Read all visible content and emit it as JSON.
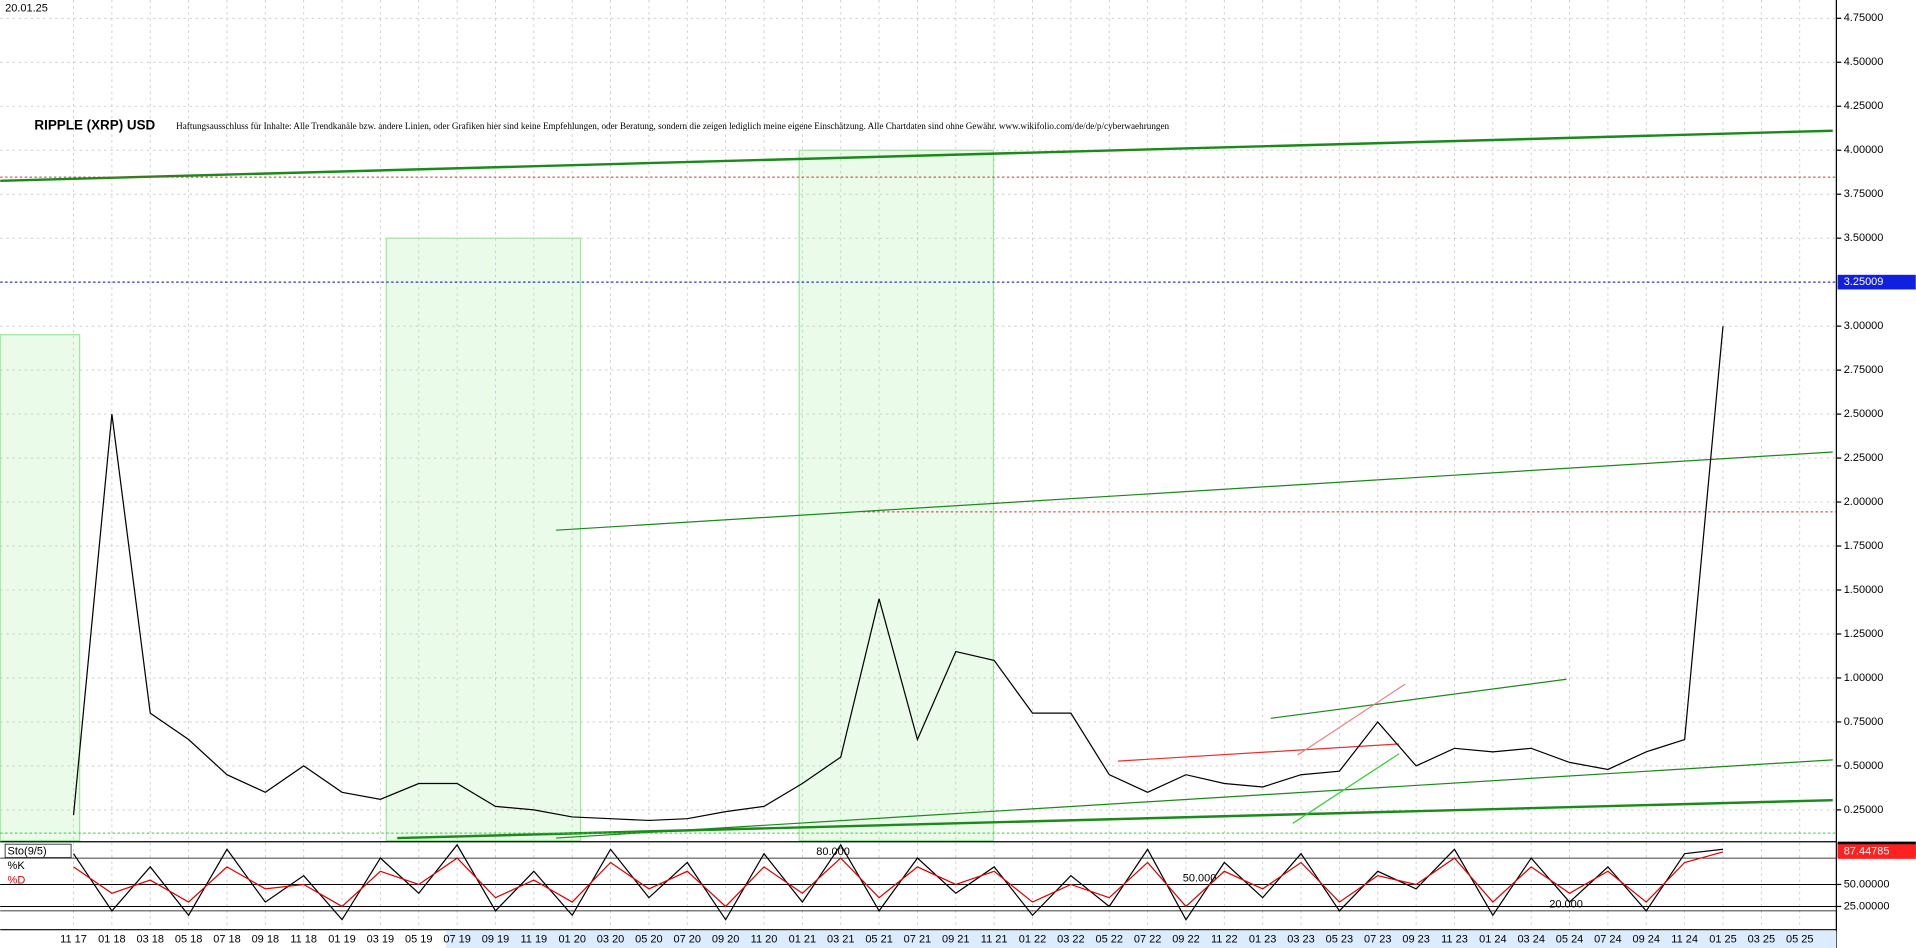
{
  "chart_data": [
    {
      "type": "line",
      "title": "RIPPLE (XRP) USD",
      "date": "20.01.25",
      "subtitle": "Haftungsausschluss für Inhalte: Alle Trendkanäle bzw. andere Linien, oder Grafiken hier sind keine Empfehlungen, oder Beratung, sondern die zeigen lediglich meine eigene Einschätzung. Alle Chartdaten sind ohne Gewähr. www.wikifolio.com/de/de/p/cyberwaehrungen",
      "categories": [
        "11 17",
        "01 18",
        "03 18",
        "05 18",
        "07 18",
        "09 18",
        "11 18",
        "01 19",
        "03 19",
        "05 19",
        "07 19",
        "09 19",
        "11 19",
        "01 20",
        "03 20",
        "05 20",
        "07 20",
        "09 20",
        "11 20",
        "01 21",
        "03 21",
        "05 21",
        "07 21",
        "09 21",
        "11 21",
        "01 22",
        "03 22",
        "05 22",
        "07 22",
        "09 22",
        "11 22",
        "01 23",
        "03 23",
        "05 23",
        "07 23",
        "09 23",
        "11 23",
        "01 24",
        "03 24",
        "05 24",
        "07 24",
        "09 24",
        "11 24",
        "01 25",
        "03 25",
        "05 25"
      ],
      "series": [
        {
          "name": "XRP",
          "color": "#000000",
          "values": [
            0.22,
            2.5,
            0.8,
            0.65,
            0.45,
            0.35,
            0.5,
            0.35,
            0.31,
            0.4,
            0.4,
            0.27,
            0.25,
            0.21,
            0.2,
            0.19,
            0.2,
            0.24,
            0.27,
            0.4,
            0.55,
            1.45,
            0.65,
            1.15,
            1.1,
            0.8,
            0.8,
            0.45,
            0.35,
            0.45,
            0.4,
            0.38,
            0.45,
            0.47,
            0.75,
            0.5,
            0.6,
            0.58,
            0.6,
            0.52,
            0.48,
            0.58,
            0.65,
            3.0,
            null,
            null
          ]
        }
      ],
      "last_value": 3.25009,
      "ylim": [
        0.076,
        4.854
      ],
      "yticks": [
        {
          "value": 0.25,
          "label": "0.25000"
        },
        {
          "value": 0.5,
          "label": "0.50000"
        },
        {
          "value": 0.75,
          "label": "0.75000"
        },
        {
          "value": 1,
          "label": "1.00000"
        },
        {
          "value": 1.25,
          "label": "1.25000"
        },
        {
          "value": 1.5,
          "label": "1.50000"
        },
        {
          "value": 1.75,
          "label": "1.75000"
        },
        {
          "value": 2,
          "label": "2.00000"
        },
        {
          "value": 2.25,
          "label": "2.25000"
        },
        {
          "value": 2.5,
          "label": "2.50000"
        },
        {
          "value": 2.75,
          "label": "2.75000"
        },
        {
          "value": 3,
          "label": "3.00000"
        },
        {
          "value": 3.5,
          "label": "3.50000"
        },
        {
          "value": 3.75,
          "label": "3.75000"
        },
        {
          "value": 4,
          "label": "4.00000"
        },
        {
          "value": 4.25,
          "label": "4.25000"
        },
        {
          "value": 4.5,
          "label": "4.50000"
        },
        {
          "value": 4.75,
          "label": "4.75000"
        }
      ],
      "grid": true
    },
    {
      "type": "line",
      "title": "Sto(9/5)",
      "series": [
        {
          "name": "%K",
          "color": "#000000",
          "values": [
            85,
            20,
            70,
            15,
            90,
            30,
            60,
            10,
            80,
            40,
            95,
            20,
            65,
            15,
            90,
            35,
            75,
            10,
            85,
            30,
            95,
            20,
            80,
            40,
            70,
            15,
            60,
            25,
            90,
            10,
            75,
            35,
            85,
            20,
            65,
            45,
            90,
            15,
            80,
            30,
            70,
            20,
            85,
            90,
            null,
            null
          ]
        },
        {
          "name": "%D",
          "color": "#e00000",
          "values": [
            70,
            40,
            55,
            30,
            70,
            45,
            50,
            25,
            65,
            50,
            80,
            35,
            55,
            30,
            75,
            45,
            65,
            25,
            70,
            40,
            80,
            35,
            70,
            50,
            65,
            30,
            50,
            35,
            75,
            25,
            65,
            45,
            75,
            30,
            60,
            50,
            80,
            30,
            70,
            40,
            65,
            30,
            75,
            87,
            null,
            null
          ]
        }
      ],
      "last_k": 90.37452,
      "last_d": 87.44785,
      "levels": [
        {
          "value": 80,
          "label": "80.000"
        },
        {
          "value": 50,
          "label": "50.000"
        },
        {
          "value": 20,
          "label": "20.000"
        }
      ],
      "ylim": [
        0,
        100
      ],
      "yticks": [
        {
          "value": 50,
          "label": "50.00000"
        },
        {
          "value": 25,
          "label": "25.00000"
        }
      ]
    }
  ]
}
